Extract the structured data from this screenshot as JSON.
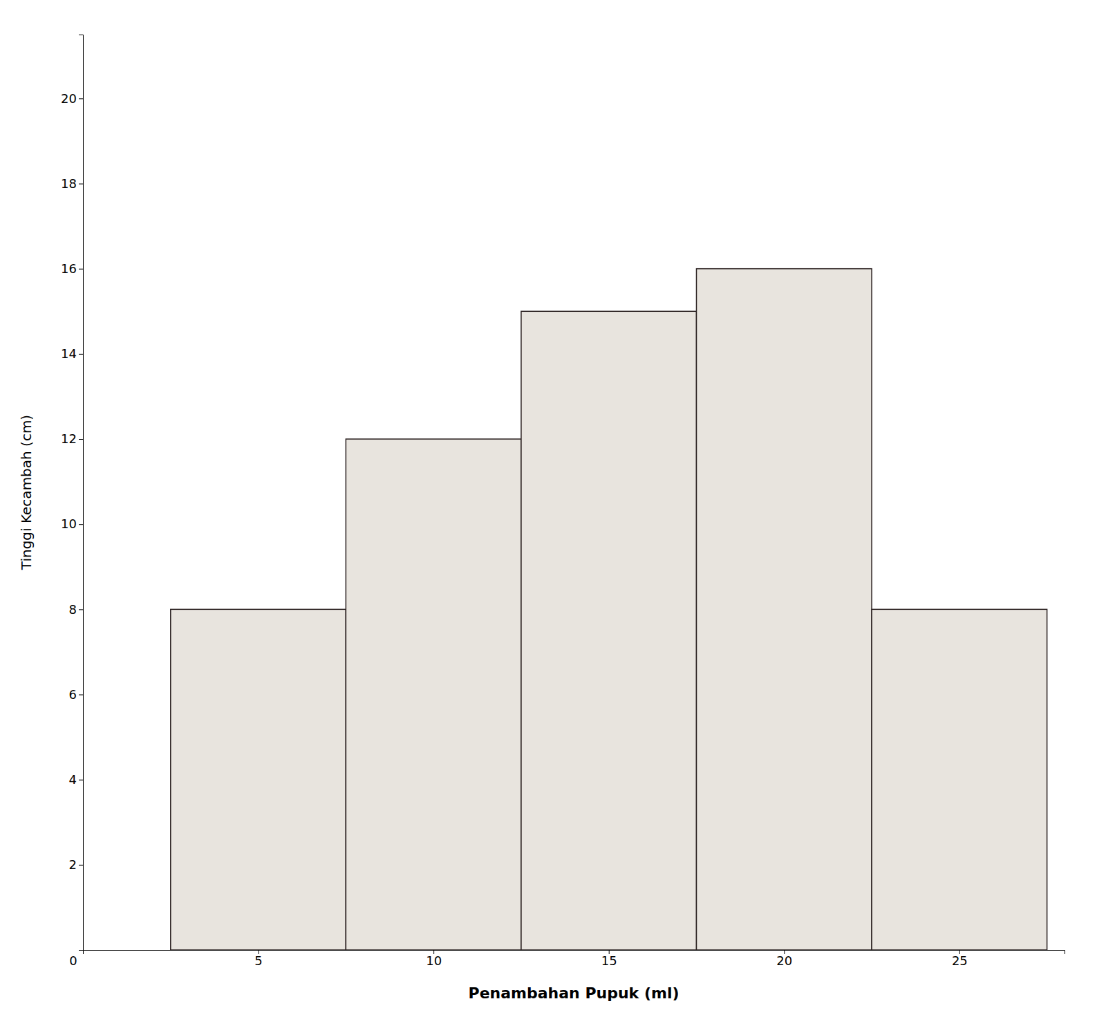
{
  "chart_data": {
    "type": "bar",
    "x": [
      5,
      10,
      15,
      20,
      25
    ],
    "values": [
      8,
      12,
      15,
      16,
      8
    ],
    "color": "#e8e4de",
    "xlabel": "Penambahan Pupuk (ml)",
    "ylabel": "Tinggi Kecambah (cm)",
    "xlim": [
      0,
      28
    ],
    "ylim": [
      0,
      21.5
    ],
    "xticks": [
      5,
      10,
      15,
      20,
      25
    ],
    "yticks": [
      2,
      4,
      6,
      8,
      10,
      12,
      14,
      16,
      18,
      20
    ],
    "annotations": [
      {
        "text": "0",
        "x": 0,
        "y": 0
      }
    ],
    "grid": false
  }
}
